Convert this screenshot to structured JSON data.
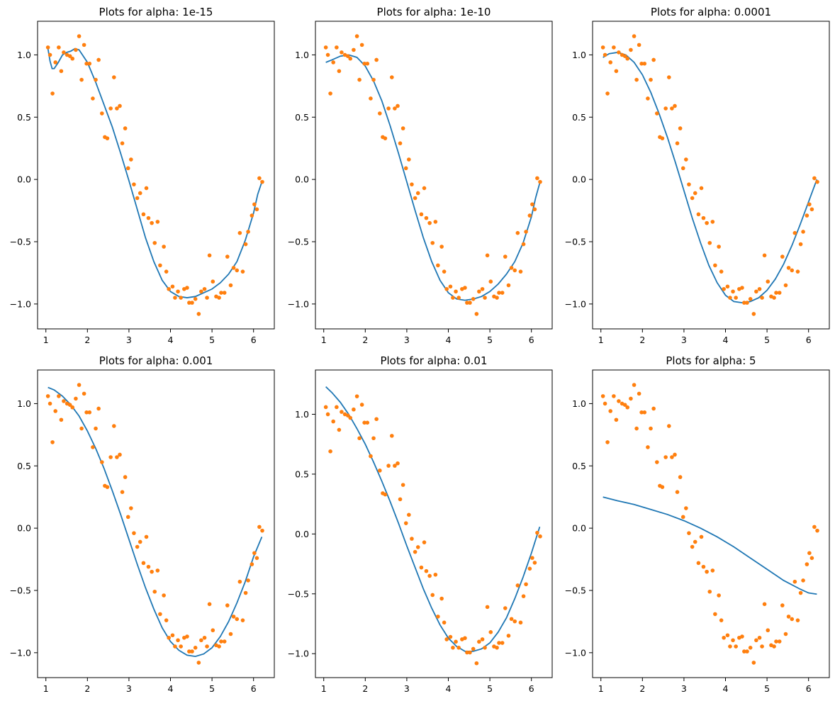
{
  "chart_data": [
    {
      "type": "scatter+line",
      "title": "Plots for alpha: 1e-15",
      "xlim": [
        0.8,
        6.5
      ],
      "ylim": [
        -1.2,
        1.27
      ],
      "xticks": [
        1,
        2,
        3,
        4,
        5,
        6
      ],
      "yticks": [
        -1.0,
        -0.5,
        0.0,
        0.5,
        1.0
      ],
      "fit_curve": {
        "x": [
          1.05,
          1.1,
          1.15,
          1.2,
          1.3,
          1.4,
          1.5,
          1.6,
          1.7,
          1.8,
          2.0,
          2.2,
          2.4,
          2.6,
          2.8,
          3.0,
          3.2,
          3.4,
          3.6,
          3.8,
          4.0,
          4.2,
          4.4,
          4.6,
          4.8,
          5.0,
          5.2,
          5.4,
          5.6,
          5.8,
          6.0,
          6.1,
          6.2
        ],
        "y": [
          1.05,
          0.95,
          0.89,
          0.89,
          0.94,
          1.0,
          1.02,
          1.03,
          1.05,
          1.04,
          0.94,
          0.78,
          0.6,
          0.42,
          0.21,
          -0.01,
          -0.24,
          -0.47,
          -0.66,
          -0.81,
          -0.9,
          -0.94,
          -0.95,
          -0.94,
          -0.91,
          -0.88,
          -0.83,
          -0.76,
          -0.66,
          -0.49,
          -0.27,
          -0.12,
          -0.02
        ]
      }
    },
    {
      "type": "scatter+line",
      "title": "Plots for alpha: 1e-10",
      "xlim": [
        0.8,
        6.5
      ],
      "ylim": [
        -1.2,
        1.27
      ],
      "xticks": [
        1,
        2,
        3,
        4,
        5,
        6
      ],
      "yticks": [
        -1.0,
        -0.5,
        0.0,
        0.5,
        1.0
      ],
      "fit_curve": {
        "x": [
          1.05,
          1.2,
          1.4,
          1.6,
          1.8,
          2.0,
          2.2,
          2.4,
          2.6,
          2.8,
          3.0,
          3.2,
          3.4,
          3.6,
          3.8,
          4.0,
          4.2,
          4.4,
          4.6,
          4.8,
          5.0,
          5.2,
          5.4,
          5.6,
          5.8,
          6.0,
          6.1,
          6.2
        ],
        "y": [
          0.94,
          0.96,
          0.99,
          1.0,
          0.98,
          0.91,
          0.79,
          0.63,
          0.43,
          0.21,
          -0.02,
          -0.25,
          -0.47,
          -0.66,
          -0.81,
          -0.91,
          -0.96,
          -0.97,
          -0.96,
          -0.94,
          -0.9,
          -0.84,
          -0.76,
          -0.66,
          -0.51,
          -0.3,
          -0.15,
          -0.03
        ]
      }
    },
    {
      "type": "scatter+line",
      "title": "Plots for alpha: 0.0001",
      "xlim": [
        0.8,
        6.5
      ],
      "ylim": [
        -1.2,
        1.27
      ],
      "xticks": [
        1,
        2,
        3,
        4,
        5,
        6
      ],
      "yticks": [
        -1.0,
        -0.5,
        0.0,
        0.5,
        1.0
      ],
      "fit_curve": {
        "x": [
          1.05,
          1.2,
          1.4,
          1.6,
          1.8,
          2.0,
          2.2,
          2.4,
          2.6,
          2.8,
          3.0,
          3.2,
          3.4,
          3.6,
          3.8,
          4.0,
          4.2,
          4.4,
          4.6,
          4.8,
          5.0,
          5.2,
          5.4,
          5.6,
          5.8,
          6.0,
          6.2
        ],
        "y": [
          0.98,
          1.01,
          1.02,
          1.0,
          0.94,
          0.84,
          0.7,
          0.53,
          0.34,
          0.13,
          -0.09,
          -0.31,
          -0.51,
          -0.69,
          -0.83,
          -0.93,
          -0.98,
          -0.99,
          -0.98,
          -0.95,
          -0.89,
          -0.8,
          -0.68,
          -0.53,
          -0.36,
          -0.18,
          0.0
        ]
      }
    },
    {
      "type": "scatter+line",
      "title": "Plots for alpha: 0.001",
      "xlim": [
        0.8,
        6.5
      ],
      "ylim": [
        -1.2,
        1.27
      ],
      "xticks": [
        1,
        2,
        3,
        4,
        5,
        6
      ],
      "yticks": [
        -1.0,
        -0.5,
        0.0,
        0.5,
        1.0
      ],
      "fit_curve": {
        "x": [
          1.05,
          1.2,
          1.4,
          1.6,
          1.8,
          2.0,
          2.2,
          2.4,
          2.6,
          2.8,
          3.0,
          3.2,
          3.4,
          3.6,
          3.8,
          4.0,
          4.2,
          4.4,
          4.6,
          4.8,
          5.0,
          5.2,
          5.4,
          5.6,
          5.8,
          6.0,
          6.2
        ],
        "y": [
          1.13,
          1.11,
          1.06,
          0.99,
          0.9,
          0.78,
          0.64,
          0.48,
          0.3,
          0.11,
          -0.09,
          -0.29,
          -0.48,
          -0.65,
          -0.8,
          -0.91,
          -0.98,
          -1.02,
          -1.03,
          -1.01,
          -0.96,
          -0.87,
          -0.75,
          -0.6,
          -0.43,
          -0.23,
          -0.07
        ]
      }
    },
    {
      "type": "scatter+line",
      "title": "Plots for alpha: 0.01",
      "xlim": [
        0.8,
        6.5
      ],
      "ylim": [
        -1.2,
        1.37
      ],
      "xticks": [
        1,
        2,
        3,
        4,
        5,
        6
      ],
      "yticks": [
        -1.0,
        -0.5,
        0.0,
        0.5,
        1.0
      ],
      "fit_curve": {
        "x": [
          1.05,
          1.2,
          1.4,
          1.6,
          1.8,
          2.0,
          2.2,
          2.4,
          2.6,
          2.8,
          3.0,
          3.2,
          3.4,
          3.6,
          3.8,
          4.0,
          4.2,
          4.4,
          4.6,
          4.8,
          5.0,
          5.2,
          5.4,
          5.6,
          5.8,
          6.0,
          6.2
        ],
        "y": [
          1.23,
          1.18,
          1.1,
          1.0,
          0.88,
          0.75,
          0.6,
          0.44,
          0.27,
          0.09,
          -0.1,
          -0.28,
          -0.46,
          -0.62,
          -0.76,
          -0.87,
          -0.94,
          -0.98,
          -0.98,
          -0.96,
          -0.91,
          -0.82,
          -0.7,
          -0.54,
          -0.36,
          -0.16,
          0.06
        ]
      }
    },
    {
      "type": "scatter+line",
      "title": "Plots for alpha: 5",
      "xlim": [
        0.8,
        6.5
      ],
      "ylim": [
        -1.2,
        1.27
      ],
      "xticks": [
        1,
        2,
        3,
        4,
        5,
        6
      ],
      "yticks": [
        -1.0,
        -0.5,
        0.0,
        0.5,
        1.0
      ],
      "fit_curve": {
        "x": [
          1.05,
          1.4,
          1.8,
          2.2,
          2.6,
          3.0,
          3.4,
          3.8,
          4.2,
          4.6,
          5.0,
          5.4,
          5.8,
          6.0,
          6.2
        ],
        "y": [
          0.25,
          0.22,
          0.19,
          0.15,
          0.11,
          0.06,
          0.0,
          -0.07,
          -0.15,
          -0.24,
          -0.33,
          -0.42,
          -0.49,
          -0.52,
          -0.53
        ]
      }
    }
  ],
  "observed_points": {
    "x": [
      1.05,
      1.1,
      1.16,
      1.23,
      1.31,
      1.37,
      1.43,
      1.51,
      1.58,
      1.64,
      1.72,
      1.8,
      1.86,
      1.92,
      1.98,
      2.05,
      2.13,
      2.2,
      2.27,
      2.35,
      2.42,
      2.48,
      2.56,
      2.64,
      2.71,
      2.78,
      2.84,
      2.91,
      2.98,
      3.05,
      3.12,
      3.2,
      3.27,
      3.35,
      3.42,
      3.47,
      3.55,
      3.62,
      3.69,
      3.75,
      3.84,
      3.9,
      3.96,
      4.05,
      4.11,
      4.18,
      4.25,
      4.33,
      4.4,
      4.45,
      4.52,
      4.6,
      4.68,
      4.74,
      4.82,
      4.88,
      4.94,
      5.02,
      5.1,
      5.17,
      5.22,
      5.3,
      5.37,
      5.45,
      5.52,
      5.6,
      5.67,
      5.74,
      5.81,
      5.87,
      5.96,
      6.02,
      6.08,
      6.14,
      6.21
    ],
    "y": [
      1.06,
      1.0,
      0.69,
      0.94,
      1.06,
      0.87,
      1.02,
      1.0,
      0.99,
      0.97,
      1.04,
      1.15,
      0.8,
      1.08,
      0.93,
      0.93,
      0.65,
      0.8,
      0.96,
      0.53,
      0.34,
      0.33,
      0.57,
      0.82,
      0.57,
      0.59,
      0.29,
      0.41,
      0.09,
      0.16,
      -0.04,
      -0.15,
      -0.11,
      -0.28,
      -0.07,
      -0.31,
      -0.35,
      -0.51,
      -0.34,
      -0.69,
      -0.54,
      -0.74,
      -0.88,
      -0.86,
      -0.95,
      -0.9,
      -0.95,
      -0.88,
      -0.87,
      -0.99,
      -0.99,
      -0.96,
      -1.08,
      -0.9,
      -0.88,
      -0.95,
      -0.61,
      -0.82,
      -0.94,
      -0.95,
      -0.91,
      -0.91,
      -0.62,
      -0.85,
      -0.71,
      -0.73,
      -0.43,
      -0.74,
      -0.52,
      -0.42,
      -0.29,
      -0.2,
      -0.24,
      0.01,
      -0.02
    ]
  },
  "colors": {
    "fit": "#1f77b4",
    "points": "#ff7f0e"
  }
}
